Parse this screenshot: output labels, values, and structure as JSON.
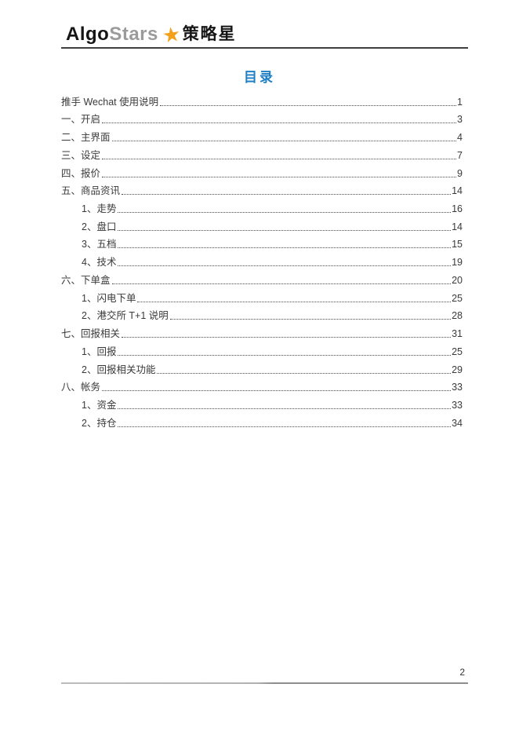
{
  "header": {
    "logo": {
      "algo": "Algo",
      "stars": "Stars",
      "star_icon": "★",
      "cn_name": "策略星"
    }
  },
  "toc": {
    "title": "目录",
    "entries": [
      {
        "label": "推手 Wechat 使用说明",
        "page": "1",
        "level": 0
      },
      {
        "label": "一、开启",
        "page": "3",
        "level": 0
      },
      {
        "label": "二、主界面",
        "page": "4",
        "level": 0
      },
      {
        "label": "三、设定",
        "page": "7",
        "level": 0
      },
      {
        "label": "四、报价",
        "page": "9",
        "level": 0
      },
      {
        "label": "五、商品资讯",
        "page": "14",
        "level": 0
      },
      {
        "label": "1、走势",
        "page": "16",
        "level": 1
      },
      {
        "label": "2、盘口",
        "page": "14",
        "level": 1
      },
      {
        "label": "3、五档",
        "page": "15",
        "level": 1
      },
      {
        "label": "4、技术",
        "page": "19",
        "level": 1
      },
      {
        "label": "六、下单盒",
        "page": "20",
        "level": 0
      },
      {
        "label": "1、闪电下单",
        "page": "25",
        "level": 1
      },
      {
        "label": "2、港交所 T+1 说明",
        "page": "28",
        "level": 1
      },
      {
        "label": "七、回报相关",
        "page": "31",
        "level": 0
      },
      {
        "label": "1、回报",
        "page": "25",
        "level": 1
      },
      {
        "label": "2、回报相关功能",
        "page": "29",
        "level": 1
      },
      {
        "label": "八、帐务",
        "page": "33",
        "level": 0
      },
      {
        "label": "1、资金",
        "page": "33",
        "level": 1
      },
      {
        "label": "2、持仓",
        "page": "34",
        "level": 1
      }
    ]
  },
  "footer": {
    "page_number": "2"
  },
  "colors": {
    "accent_blue": "#1E7FC4",
    "star_orange": "#F5A01B",
    "logo_gray": "#9B9B9B",
    "text_dark": "#3A3A3A"
  }
}
